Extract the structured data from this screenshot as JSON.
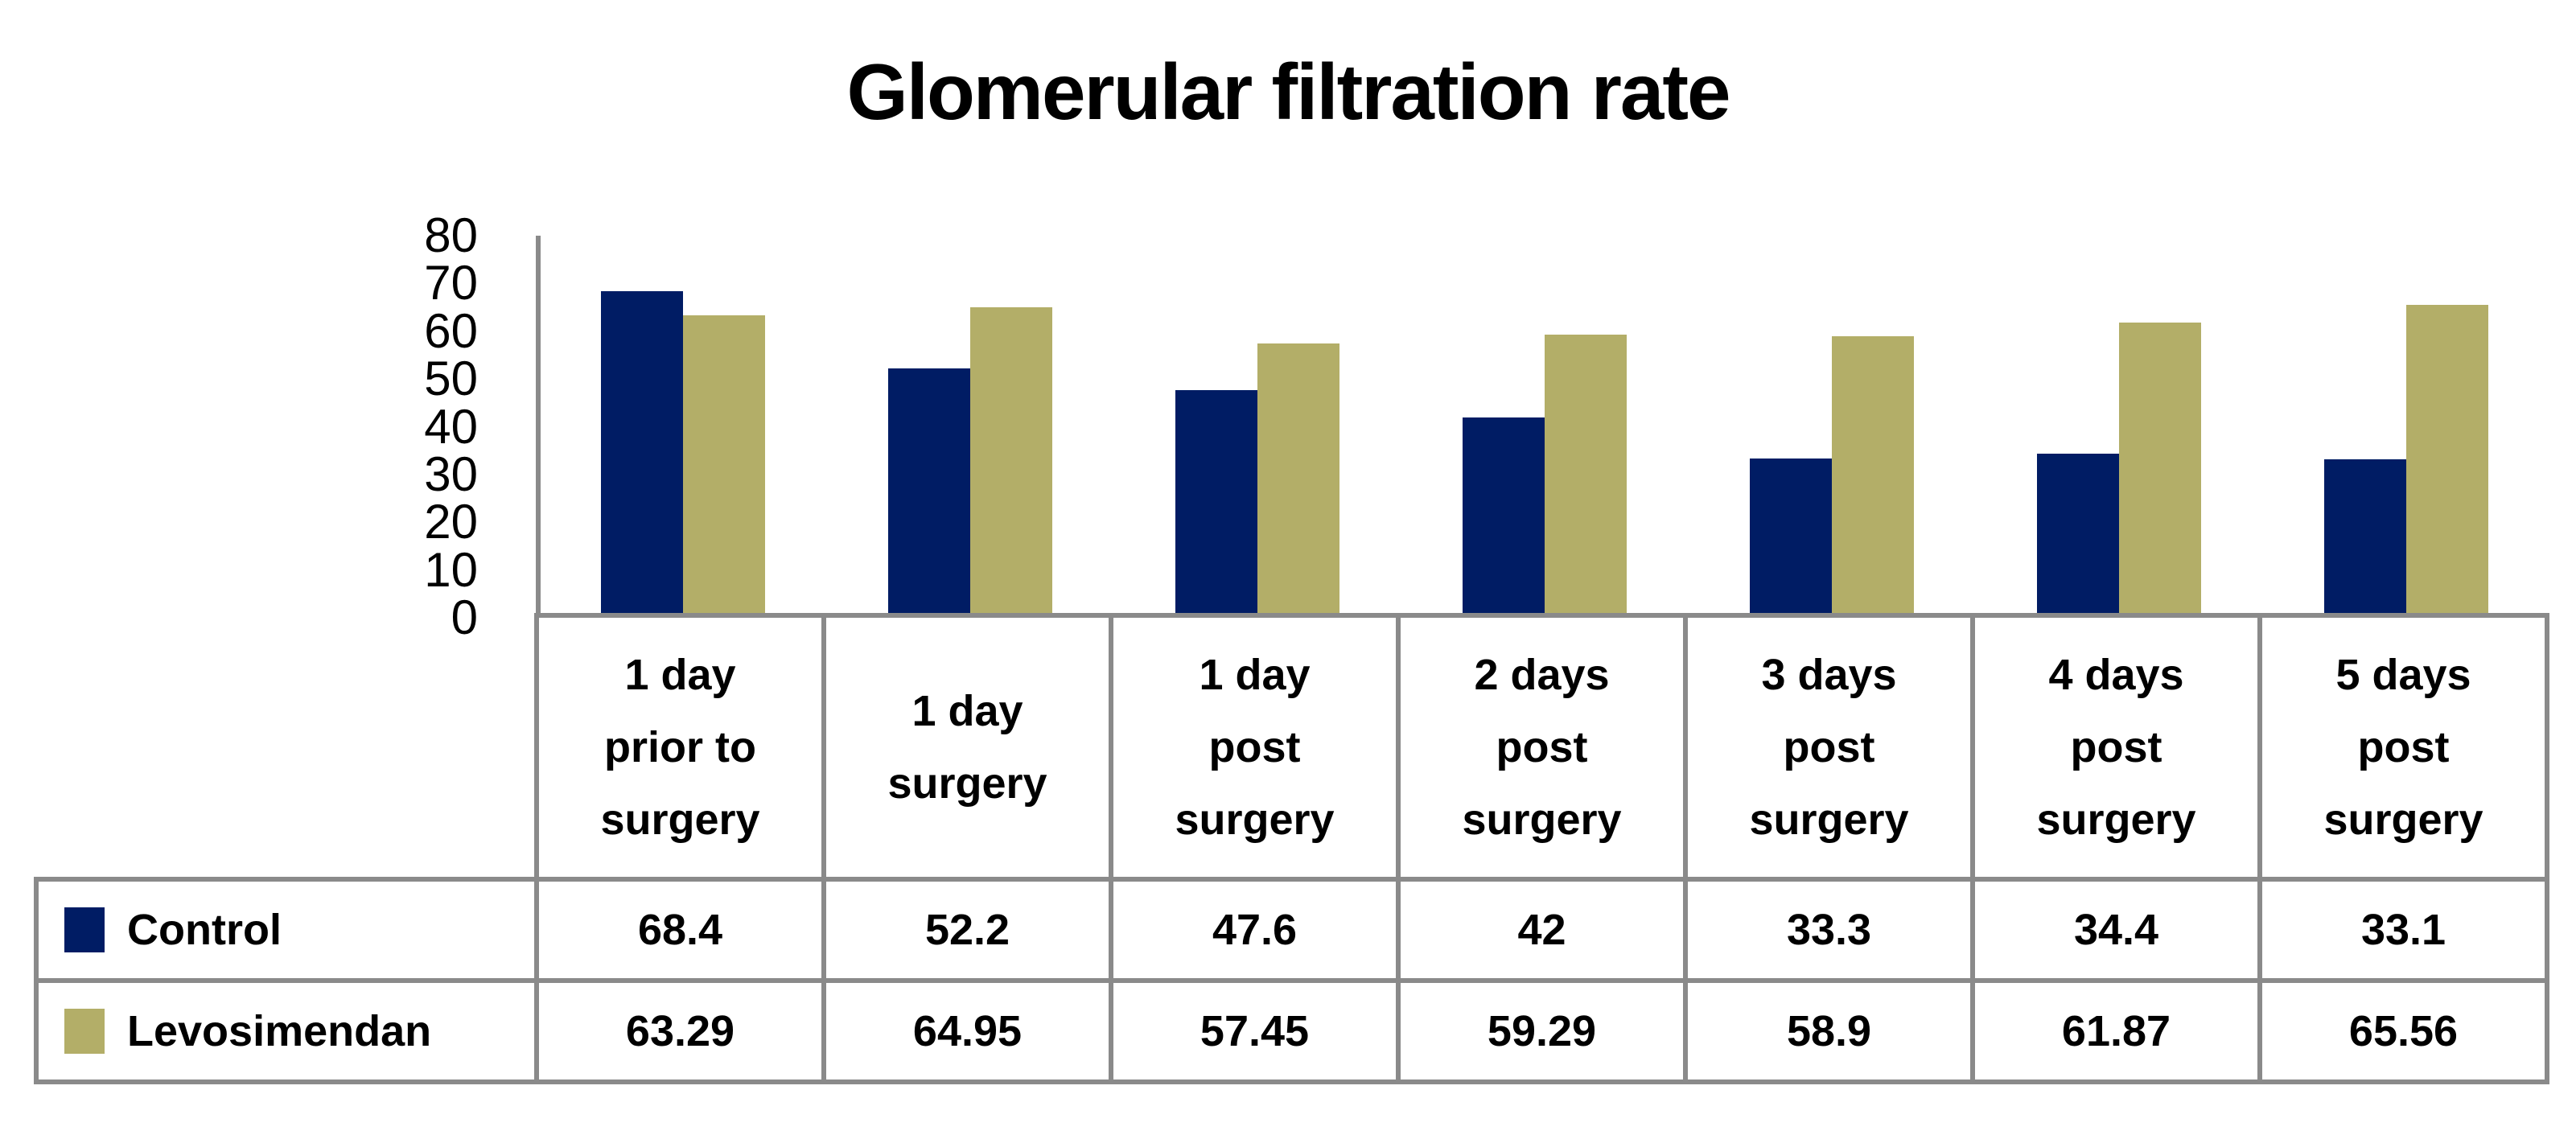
{
  "title": "Glomerular filtration rate",
  "colors": {
    "control": "#001C64",
    "levosimendan": "#B3AE68",
    "axis_and_border": "#8A8A8A",
    "text": "#000000",
    "background": "#FFFFFF"
  },
  "chart_data": {
    "type": "bar",
    "title": "Glomerular filtration rate",
    "categories": [
      "1 day prior to surgery",
      "1 day surgery",
      "1 day post surgery",
      "2 days post surgery",
      "3 days post surgery",
      "4 days post surgery",
      "5 days post surgery"
    ],
    "category_lines": [
      [
        "1 day",
        "prior to",
        "surgery"
      ],
      [
        "1 day",
        "surgery"
      ],
      [
        "1 day",
        "post",
        "surgery"
      ],
      [
        "2 days",
        "post",
        "surgery"
      ],
      [
        "3 days",
        "post",
        "surgery"
      ],
      [
        "4 days",
        "post",
        "surgery"
      ],
      [
        "5 days",
        "post",
        "surgery"
      ]
    ],
    "series": [
      {
        "name": "Control",
        "color": "#001C64",
        "values": [
          68.4,
          52.2,
          47.6,
          42,
          33.3,
          34.4,
          33.1
        ]
      },
      {
        "name": "Levosimendan",
        "color": "#B3AE68",
        "values": [
          63.29,
          64.95,
          57.45,
          59.29,
          58.9,
          61.87,
          65.56
        ]
      }
    ],
    "y_axis": {
      "min": 0,
      "max": 80,
      "tick_interval": 10,
      "ticks": [
        80,
        70,
        60,
        50,
        40,
        30,
        20,
        10,
        0
      ]
    },
    "xlabel": "",
    "ylabel": "",
    "grid": false,
    "legend_position": "data-table-left-column",
    "data_table_shown": true
  }
}
